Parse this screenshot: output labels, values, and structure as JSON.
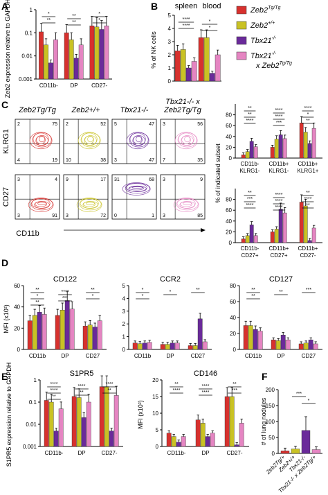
{
  "colors": {
    "zeb2_tg": "#d7312e",
    "zeb2_wt": "#c9c224",
    "tbx21_ko": "#6a2a9a",
    "tbx21_ko_zeb2_tg": "#e585c2",
    "axis": "#000000"
  },
  "legend": {
    "entries": [
      {
        "label": "Zeb2",
        "sup": "Tg/Tg",
        "color_key": "zeb2_tg"
      },
      {
        "label": "Zeb2",
        "sup": "+/+",
        "color_key": "zeb2_wt"
      },
      {
        "label": "Tbx21",
        "sup": "-/-",
        "color_key": "tbx21_ko"
      },
      {
        "label": "Tbx21",
        "sup": "-/-",
        "label2": "x Zeb2",
        "sup2": "Tg/Tg",
        "color_key": "tbx21_ko_zeb2_tg"
      }
    ]
  },
  "panel_letters": [
    "A",
    "B",
    "C",
    "D",
    "E",
    "F"
  ],
  "flow": {
    "column_titles": [
      "Zeb2Tg/Tg",
      "Zeb2+/+",
      "Tbx21-/-",
      "Tbx21-/- x"
    ],
    "column_title_line2": "Zeb2Tg/Tg",
    "row1_ylabel": "KLRG1",
    "row2_ylabel": "CD27",
    "xlabel": "CD11b",
    "row1_quadrants": [
      {
        "tl": "2",
        "tr": "75",
        "bl": "4",
        "br": "19"
      },
      {
        "tl": "2",
        "tr": "52",
        "bl": "10",
        "br": "38"
      },
      {
        "tl": "5",
        "tr": "47",
        "bl": "3",
        "br": "47"
      },
      {
        "tl": "3",
        "tr": "56",
        "bl": "7",
        "br": "35"
      }
    ],
    "row2_quadrants": [
      {
        "tl": "3",
        "tr": "4",
        "bl": "3",
        "br": "91"
      },
      {
        "tl": "9",
        "tr": "17",
        "bl": "3",
        "br": "72"
      },
      {
        "tl": "31",
        "tr": "68",
        "bl": "0",
        "br": "1"
      },
      {
        "tl": "3",
        "tr": "9",
        "bl": "3",
        "br": "85"
      }
    ]
  },
  "chart_data": [
    {
      "id": "A",
      "type": "bar",
      "title": "",
      "ylabel": "Zeb2 expression relative to GAPDH",
      "yscale": "log",
      "ylim": [
        0.001,
        1
      ],
      "yticks": [
        "0.001",
        "0.01",
        "0.1",
        "1"
      ],
      "categories": [
        "CD11b-",
        "DP",
        "CD27-"
      ],
      "series_values": [
        [
          0.11,
          0.1,
          0.2
        ],
        [
          0.03,
          0.05,
          0.18
        ],
        [
          0.005,
          0.008,
          0.14
        ],
        [
          0.05,
          0.03,
          0.2
        ]
      ],
      "significance": [
        "*",
        "**",
        "*",
        "**",
        "**",
        "*"
      ]
    },
    {
      "id": "B",
      "type": "bar",
      "title": "",
      "group_titles": [
        "spleen",
        "blood"
      ],
      "ylabel": "% of NK cells",
      "ylim": [
        0,
        5
      ],
      "yticks": [
        "0",
        "1",
        "2",
        "3",
        "4",
        "5"
      ],
      "categories": [
        "spleen",
        "blood"
      ],
      "series_values": [
        [
          2.3,
          3.3
        ],
        [
          2.4,
          3.3
        ],
        [
          1.0,
          0.6
        ],
        [
          1.5,
          2.0
        ]
      ],
      "significance": [
        "****",
        "*",
        "****",
        "*"
      ]
    },
    {
      "id": "C_right_top",
      "type": "bar",
      "ylabel": "% of indicated subset",
      "ylim": [
        0,
        100
      ],
      "yticks": [
        "0",
        "20",
        "40",
        "60",
        "80"
      ],
      "categories": [
        "CD11b- KLRG1-",
        "CD11b+ KLRG1-",
        "CD11b+ KLRG1+"
      ],
      "category_lines": [
        [
          "CD11b-",
          "KLRG1-"
        ],
        [
          "CD11b+",
          "KLRG1-"
        ],
        [
          "CD11b+",
          "KLRG1+"
        ]
      ],
      "series_values": [
        [
          6,
          20,
          65
        ],
        [
          12,
          35,
          48
        ],
        [
          31,
          43,
          27
        ],
        [
          21,
          36,
          55
        ]
      ],
      "significance": [
        "**",
        "****",
        "****",
        "**",
        "****",
        "*",
        "****",
        "***",
        "**"
      ]
    },
    {
      "id": "C_right_bottom",
      "type": "bar",
      "ylim": [
        0,
        100
      ],
      "yticks": [
        "0",
        "20",
        "40",
        "60",
        "80"
      ],
      "categories": [
        "CD11b- CD27+",
        "CD11b+ CD27+",
        "CD11b+ CD27-"
      ],
      "category_lines": [
        [
          "CD11b-",
          "CD27+"
        ],
        [
          "CD11b+",
          "CD27+"
        ],
        [
          "CD11b+",
          "CD27-"
        ]
      ],
      "series_values": [
        [
          7,
          20,
          75
        ],
        [
          13,
          25,
          68
        ],
        [
          33,
          62,
          4
        ],
        [
          13,
          55,
          27
        ]
      ],
      "significance": [
        "**",
        "****",
        "**",
        "***",
        "****",
        "****",
        "****",
        "****",
        "**"
      ]
    },
    {
      "id": "D1",
      "type": "bar",
      "title": "CD122",
      "ylabel": "MFI (x10²)",
      "ylim": [
        0,
        60
      ],
      "yticks": [
        "0",
        "20",
        "40",
        "60"
      ],
      "categories": [
        "CD11b",
        "DP",
        "CD27"
      ],
      "series_values": [
        [
          27,
          32,
          22
        ],
        [
          32,
          37,
          23
        ],
        [
          35,
          46,
          21
        ],
        [
          33,
          38,
          27
        ]
      ],
      "significance": [
        "**",
        "****",
        "**",
        "*",
        "***",
        "*",
        "**"
      ]
    },
    {
      "id": "D2",
      "type": "bar",
      "title": "CCR2",
      "ylim": [
        0,
        5
      ],
      "yticks": [
        "0",
        "1",
        "2",
        "3",
        "4",
        "5"
      ],
      "categories": [
        "CD11b",
        "DP",
        "CD27"
      ],
      "series_values": [
        [
          0.5,
          0.4,
          0.3
        ],
        [
          0.45,
          0.4,
          0.3
        ],
        [
          0.5,
          0.5,
          2.4
        ],
        [
          0.55,
          0.5,
          0.6
        ]
      ],
      "significance": [
        "*",
        "*",
        "**",
        "*"
      ]
    },
    {
      "id": "D3",
      "type": "bar",
      "title": "CD127",
      "ylim": [
        0,
        80
      ],
      "yticks": [
        "0",
        "20",
        "40",
        "60",
        "80"
      ],
      "categories": [
        "CD11b",
        "DP",
        "CD27"
      ],
      "series_values": [
        [
          30,
          12,
          7
        ],
        [
          30,
          11,
          8
        ],
        [
          25,
          18,
          12
        ],
        [
          23,
          12,
          7
        ]
      ],
      "significance": [
        "**",
        "**",
        "***",
        "**"
      ]
    },
    {
      "id": "E1",
      "type": "bar",
      "title": "S1PR5",
      "ylabel": "S1PR5 expression relative to GAPDH",
      "yscale": "log",
      "ylim": [
        0.001,
        1
      ],
      "yticks": [
        "0.001",
        "0.01",
        "0.1",
        "1"
      ],
      "categories": [
        "CD11b-",
        "DP",
        "CD27-"
      ],
      "series_values": [
        [
          0.12,
          0.18,
          0.5
        ],
        [
          0.1,
          0.16,
          0.5
        ],
        [
          0.005,
          0.02,
          0.005
        ],
        [
          0.05,
          0.1,
          0.2
        ]
      ],
      "significance": [
        "****",
        "****",
        "****",
        "****",
        "**",
        "**",
        "**"
      ]
    },
    {
      "id": "E2",
      "type": "bar",
      "title": "CD146",
      "ylabel": "MFI (x10²)",
      "ylim": [
        0,
        20
      ],
      "yticks": [
        "0",
        "5",
        "10",
        "15",
        "20"
      ],
      "categories": [
        "CD11b-",
        "DP",
        "CD27-"
      ],
      "series_values": [
        [
          4,
          8,
          15
        ],
        [
          3,
          7,
          15
        ],
        [
          1.3,
          3,
          0.5
        ],
        [
          3,
          4,
          7
        ]
      ],
      "significance": [
        "**",
        "****",
        "**",
        "****",
        "****",
        "***"
      ]
    },
    {
      "id": "F",
      "type": "bar",
      "title": "",
      "ylabel": "# of lung nodules",
      "ylim": [
        0,
        200
      ],
      "yticks": [
        "0",
        "50",
        "100",
        "150",
        "200"
      ],
      "categories": [
        "Zeb2Tg/+",
        "Zeb2+/+",
        "Tbx21-/-",
        "Tbx21-/- x Zeb2Tg/+"
      ],
      "series_values": [
        [
          8,
          14,
          72,
          12
        ]
      ],
      "significance": [
        "***",
        "*"
      ]
    }
  ]
}
